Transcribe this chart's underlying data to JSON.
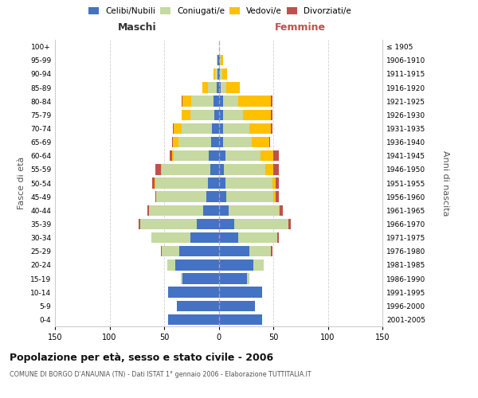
{
  "age_groups": [
    "100+",
    "95-99",
    "90-94",
    "85-89",
    "80-84",
    "75-79",
    "70-74",
    "65-69",
    "60-64",
    "55-59",
    "50-54",
    "45-49",
    "40-44",
    "35-39",
    "30-34",
    "25-29",
    "20-24",
    "15-19",
    "10-14",
    "5-9",
    "0-4"
  ],
  "birth_years": [
    "≤ 1905",
    "1906-1910",
    "1911-1915",
    "1916-1920",
    "1921-1925",
    "1926-1930",
    "1931-1935",
    "1936-1940",
    "1941-1945",
    "1946-1950",
    "1951-1955",
    "1956-1960",
    "1961-1965",
    "1966-1970",
    "1971-1975",
    "1976-1980",
    "1981-1985",
    "1986-1990",
    "1991-1995",
    "1996-2000",
    "2001-2005"
  ],
  "males_celibi": [
    0,
    1,
    1,
    2,
    5,
    4,
    6,
    7,
    9,
    8,
    10,
    11,
    14,
    20,
    26,
    36,
    40,
    33,
    46,
    38,
    46
  ],
  "males_coniugati": [
    0,
    1,
    2,
    8,
    20,
    22,
    28,
    30,
    32,
    44,
    48,
    46,
    50,
    52,
    36,
    16,
    7,
    2,
    0,
    0,
    0
  ],
  "males_vedovi": [
    0,
    0,
    2,
    5,
    8,
    8,
    7,
    5,
    2,
    1,
    1,
    0,
    0,
    0,
    0,
    0,
    0,
    0,
    0,
    0,
    0
  ],
  "males_divorziati": [
    0,
    0,
    0,
    0,
    1,
    0,
    1,
    1,
    2,
    5,
    2,
    1,
    1,
    1,
    0,
    1,
    0,
    0,
    0,
    0,
    0
  ],
  "females_nubili": [
    0,
    1,
    1,
    2,
    4,
    4,
    4,
    4,
    6,
    5,
    6,
    7,
    9,
    14,
    18,
    28,
    32,
    26,
    40,
    33,
    40
  ],
  "females_coniugate": [
    0,
    1,
    2,
    5,
    14,
    18,
    24,
    26,
    32,
    38,
    43,
    43,
    46,
    50,
    36,
    20,
    9,
    2,
    0,
    0,
    0
  ],
  "females_vedove": [
    0,
    2,
    5,
    12,
    30,
    26,
    20,
    16,
    12,
    7,
    3,
    2,
    1,
    0,
    0,
    0,
    0,
    0,
    0,
    0,
    0
  ],
  "females_divorziate": [
    0,
    0,
    0,
    0,
    1,
    1,
    1,
    1,
    5,
    5,
    3,
    3,
    3,
    2,
    1,
    1,
    0,
    0,
    0,
    0,
    0
  ],
  "color_celibi": "#4472c4",
  "color_coniugati": "#c5d9a0",
  "color_vedovi": "#ffc000",
  "color_divorziati": "#c0504d",
  "title": "Popolazione per età, sesso e stato civile - 2006",
  "subtitle": "COMUNE DI BORGO D'ANAUNIA (TN) - Dati ISTAT 1° gennaio 2006 - Elaborazione TUTTITALIA.IT",
  "label_maschi": "Maschi",
  "label_femmine": "Femmine",
  "ylabel_left": "Fasce di età",
  "ylabel_right": "Anni di nascita",
  "legend_labels": [
    "Celibi/Nubili",
    "Coniugati/e",
    "Vedovi/e",
    "Divorziati/e"
  ],
  "xlim": 150
}
